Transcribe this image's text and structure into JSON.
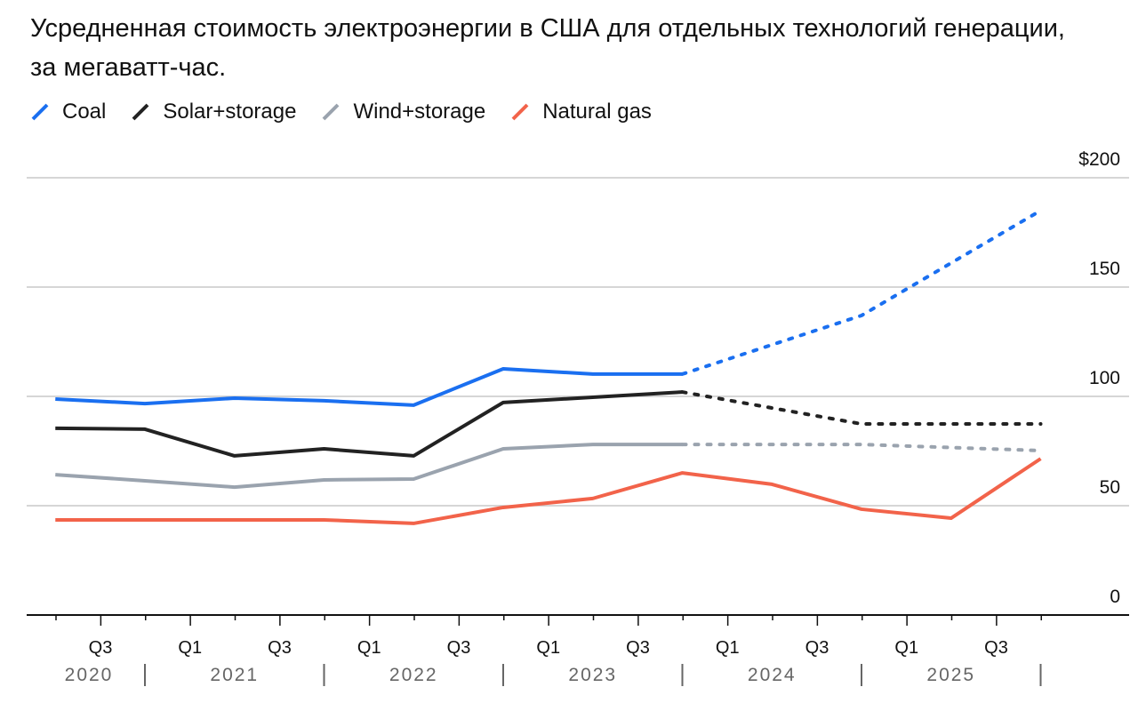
{
  "chart_data": {
    "type": "line",
    "title": "Усредненная стоимость электроэнергии в США для отдельных технологий генерации, за мегаватт-час.",
    "xlabel": "",
    "ylabel": "",
    "ylim": [
      0,
      200
    ],
    "yticks": [
      "0",
      "50",
      "100",
      "150",
      "$200"
    ],
    "ytick_values": [
      0,
      50,
      100,
      150,
      200
    ],
    "grid": true,
    "legend_position": "top-left",
    "x_quarter_labels": [
      "Q3",
      "Q1",
      "Q3",
      "Q1",
      "Q3",
      "Q1",
      "Q3",
      "Q1",
      "Q3",
      "Q1",
      "Q3"
    ],
    "x_year_labels": [
      "2020",
      "2021",
      "2022",
      "2023",
      "2024",
      "2025"
    ],
    "series": [
      {
        "name": "Coal",
        "color": "#1a6ff0",
        "actual": {
          "x": [
            "2020-07",
            "2021-01",
            "2021-07",
            "2022-01",
            "2022-07",
            "2023-01",
            "2023-07",
            "2024-01"
          ],
          "y": [
            98.8,
            96.7,
            99.2,
            98,
            96,
            112.6,
            110.2,
            110.2
          ]
        },
        "projected": {
          "x": [
            "2024-01",
            "2025-01",
            "2026-01"
          ],
          "y": [
            110.2,
            137,
            185
          ]
        }
      },
      {
        "name": "Solar+storage",
        "color": "#222222",
        "actual": {
          "x": [
            "2020-07",
            "2021-01",
            "2021-07",
            "2022-01",
            "2022-07",
            "2023-01",
            "2023-07",
            "2024-01"
          ],
          "y": [
            85.4,
            85,
            72.8,
            76,
            72.8,
            97.2,
            99.6,
            102
          ]
        },
        "projected": {
          "x": [
            "2024-01",
            "2025-01",
            "2026-01"
          ],
          "y": [
            102,
            87.4,
            87.4
          ]
        }
      },
      {
        "name": "Wind+storage",
        "color": "#9aa3ae",
        "actual": {
          "x": [
            "2020-07",
            "2021-01",
            "2021-07",
            "2022-01",
            "2022-07",
            "2023-01",
            "2023-07",
            "2024-01"
          ],
          "y": [
            64.2,
            61.4,
            58.5,
            61.8,
            62.2,
            76,
            78,
            78
          ]
        },
        "projected": {
          "x": [
            "2024-01",
            "2025-01",
            "2026-01"
          ],
          "y": [
            78,
            78,
            75.2
          ]
        }
      },
      {
        "name": "Natural gas",
        "color": "#f2634a",
        "actual": {
          "x": [
            "2020-07",
            "2021-01",
            "2021-07",
            "2022-01",
            "2022-07",
            "2023-01",
            "2023-07",
            "2024-01",
            "2024-07",
            "2025-01",
            "2025-07",
            "2026-01"
          ],
          "y": [
            43.5,
            43.5,
            43.5,
            43.5,
            41.9,
            49.2,
            53.3,
            65,
            59.8,
            48.4,
            44.3,
            71.5
          ]
        },
        "projected": {
          "x": [],
          "y": []
        }
      }
    ]
  }
}
